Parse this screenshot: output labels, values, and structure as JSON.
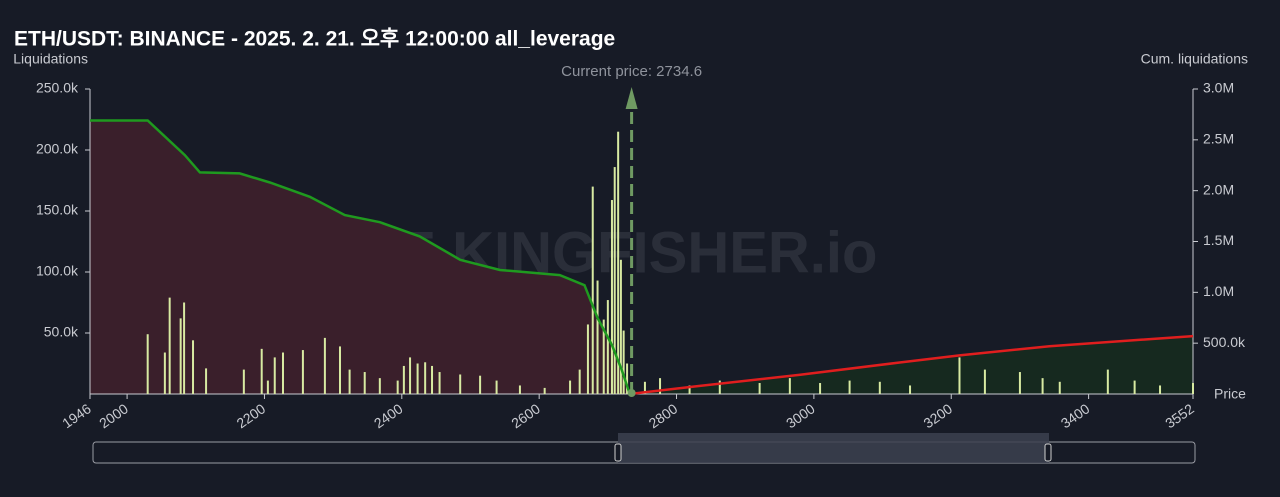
{
  "chart_data": {
    "type": "bar",
    "title": "ETH/USDT: BINANCE - 2025. 2. 21. 오후 12:00:00 all_leverage",
    "y_label": "Liquidations",
    "y2_label": "Cum. liquidations",
    "x_label": "Price",
    "watermark": "THE KINGFISHER.io",
    "current_price": 2734.6,
    "current_price_label": "Current price: 2734.6",
    "current_price_color": "#6f9a62",
    "xlim": [
      1946,
      3552
    ],
    "xticks": [
      1946,
      2000,
      2200,
      2400,
      2600,
      2800,
      3000,
      3200,
      3400,
      3552
    ],
    "ylim": [
      0,
      250000
    ],
    "yticks": [
      {
        "value": 50000,
        "label": "50.0k"
      },
      {
        "value": 100000,
        "label": "100.0k"
      },
      {
        "value": 150000,
        "label": "150.0k"
      },
      {
        "value": 200000,
        "label": "200.0k"
      },
      {
        "value": 250000,
        "label": "250.0k"
      }
    ],
    "y2lim": [
      0,
      3000000
    ],
    "y2ticks": [
      {
        "value": 500000,
        "label": "500.0k"
      },
      {
        "value": 1000000,
        "label": "1.0M"
      },
      {
        "value": 1500000,
        "label": "1.5M"
      },
      {
        "value": 2000000,
        "label": "2.0M"
      },
      {
        "value": 2500000,
        "label": "2.5M"
      },
      {
        "value": 3000000,
        "label": "3.0M"
      }
    ],
    "color": "#d8eaa2",
    "x": [
      2030,
      2055,
      2062,
      2078,
      2083,
      2096,
      2115,
      2170,
      2196,
      2205,
      2215,
      2227,
      2256,
      2288,
      2310,
      2324,
      2346,
      2368,
      2394,
      2403,
      2412,
      2423,
      2434,
      2444,
      2455,
      2485,
      2514,
      2538,
      2572,
      2608,
      2645,
      2659,
      2671,
      2678,
      2685,
      2694,
      2700,
      2706,
      2710,
      2715,
      2719,
      2723,
      2728,
      2754,
      2776,
      2819,
      2863,
      2921,
      2965,
      3009,
      3052,
      3096,
      3140,
      3212,
      3249,
      3300,
      3333,
      3358,
      3428,
      3467,
      3504,
      3552
    ],
    "values": [
      49000,
      34000,
      79000,
      62000,
      75000,
      44000,
      21000,
      20000,
      37000,
      11000,
      30000,
      34000,
      36000,
      46000,
      39000,
      20000,
      18000,
      13000,
      11000,
      23000,
      30000,
      25000,
      26000,
      23000,
      18000,
      16000,
      15000,
      11000,
      7000,
      5000,
      11000,
      20000,
      57000,
      170000,
      93000,
      61000,
      77000,
      159000,
      186000,
      215000,
      110000,
      52000,
      25000,
      10000,
      13000,
      7000,
      11000,
      9000,
      13000,
      9000,
      11000,
      10000,
      7000,
      30000,
      20000,
      18000,
      13000,
      10000,
      20000,
      11000,
      7000,
      9000
    ],
    "lines": [
      {
        "color": "#1f9a1f",
        "fill": "#3a1f2b",
        "axis": "y2",
        "x": [
          1946,
          2030,
          2084,
          2106,
          2164,
          2208,
          2266,
          2317,
          2368,
          2426,
          2485,
          2543,
          2630,
          2666,
          2685,
          2706,
          2720,
          2732
        ],
        "values": [
          2690000,
          2690000,
          2350000,
          2180000,
          2170000,
          2080000,
          1940000,
          1760000,
          1690000,
          1550000,
          1320000,
          1220000,
          1170000,
          1070000,
          750000,
          480000,
          240000,
          0
        ]
      },
      {
        "color": "#e01e1e",
        "fill": "#16291f",
        "axis": "y2",
        "x": [
          2732,
          2834,
          2980,
          3125,
          3212,
          3343,
          3552
        ],
        "values": [
          0,
          80000,
          190000,
          310000,
          380000,
          470000,
          570000
        ]
      }
    ]
  }
}
